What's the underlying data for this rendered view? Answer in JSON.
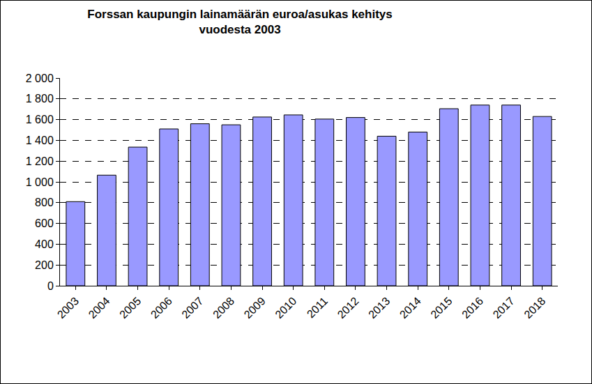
{
  "chart_data": {
    "type": "bar",
    "title": "Forssan kaupungin lainamäärän euroa/asukas kehitys\nvuodesta 2003",
    "categories": [
      "2003",
      "2004",
      "2005",
      "2006",
      "2007",
      "2008",
      "2009",
      "2010",
      "2011",
      "2012",
      "2013",
      "2014",
      "2015",
      "2016",
      "2017",
      "2018"
    ],
    "values": [
      810,
      1065,
      1335,
      1510,
      1560,
      1550,
      1625,
      1645,
      1605,
      1620,
      1440,
      1480,
      1705,
      1740,
      1740,
      1630
    ],
    "color": "#9999ff",
    "ylim": [
      0,
      2000
    ],
    "yticks": [
      0,
      200,
      400,
      600,
      800,
      {
        "value": 1000,
        "label": "1 000"
      },
      {
        "value": 1200,
        "label": "1 200"
      },
      {
        "value": 1400,
        "label": "1 400"
      },
      {
        "value": 1600,
        "label": "1 600"
      },
      {
        "value": 1800,
        "label": "1 800"
      },
      {
        "value": 2000,
        "label": "2 000"
      }
    ],
    "grid": true
  }
}
